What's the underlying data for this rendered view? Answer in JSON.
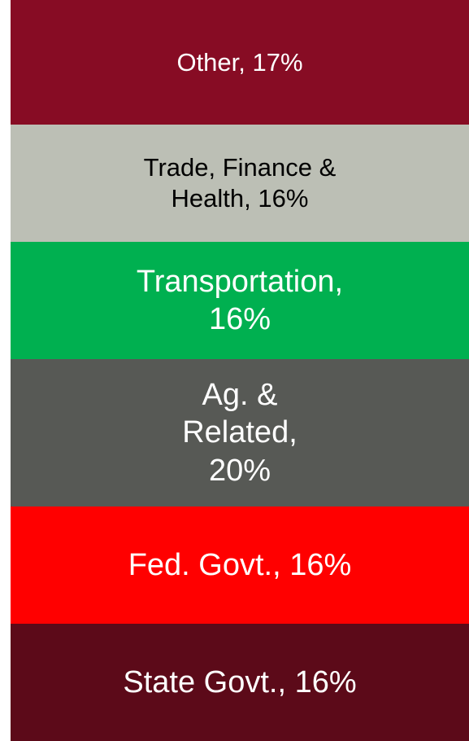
{
  "chart_data": {
    "type": "stacked_bar",
    "series": [
      {
        "color": "#5c0a19",
        "label_color": "#ffffff",
        "values": [
          16
        ],
        "value_labels": [
          "State Govt., 16%"
        ]
      },
      {
        "color": "#ff0000",
        "label_color": "#ffffff",
        "values": [
          16
        ],
        "value_labels": [
          "Fed. Govt., 16%"
        ]
      },
      {
        "color": "#575955",
        "label_color": "#ffffff",
        "values": [
          20
        ],
        "value_labels": [
          "Ag. & Related, 20%"
        ]
      },
      {
        "color": "#00b050",
        "label_color": "#ffffff",
        "values": [
          16
        ],
        "value_labels": [
          "Transportation, 16%"
        ]
      },
      {
        "color": "#bcbfb5",
        "label_color": "#000000",
        "values": [
          16
        ],
        "value_labels": [
          "Trade, Finance & Health, 16%"
        ]
      },
      {
        "color": "#870c24",
        "label_color": "#ffffff",
        "values": [
          17
        ],
        "value_labels": [
          "Other, 17%"
        ]
      }
    ]
  }
}
